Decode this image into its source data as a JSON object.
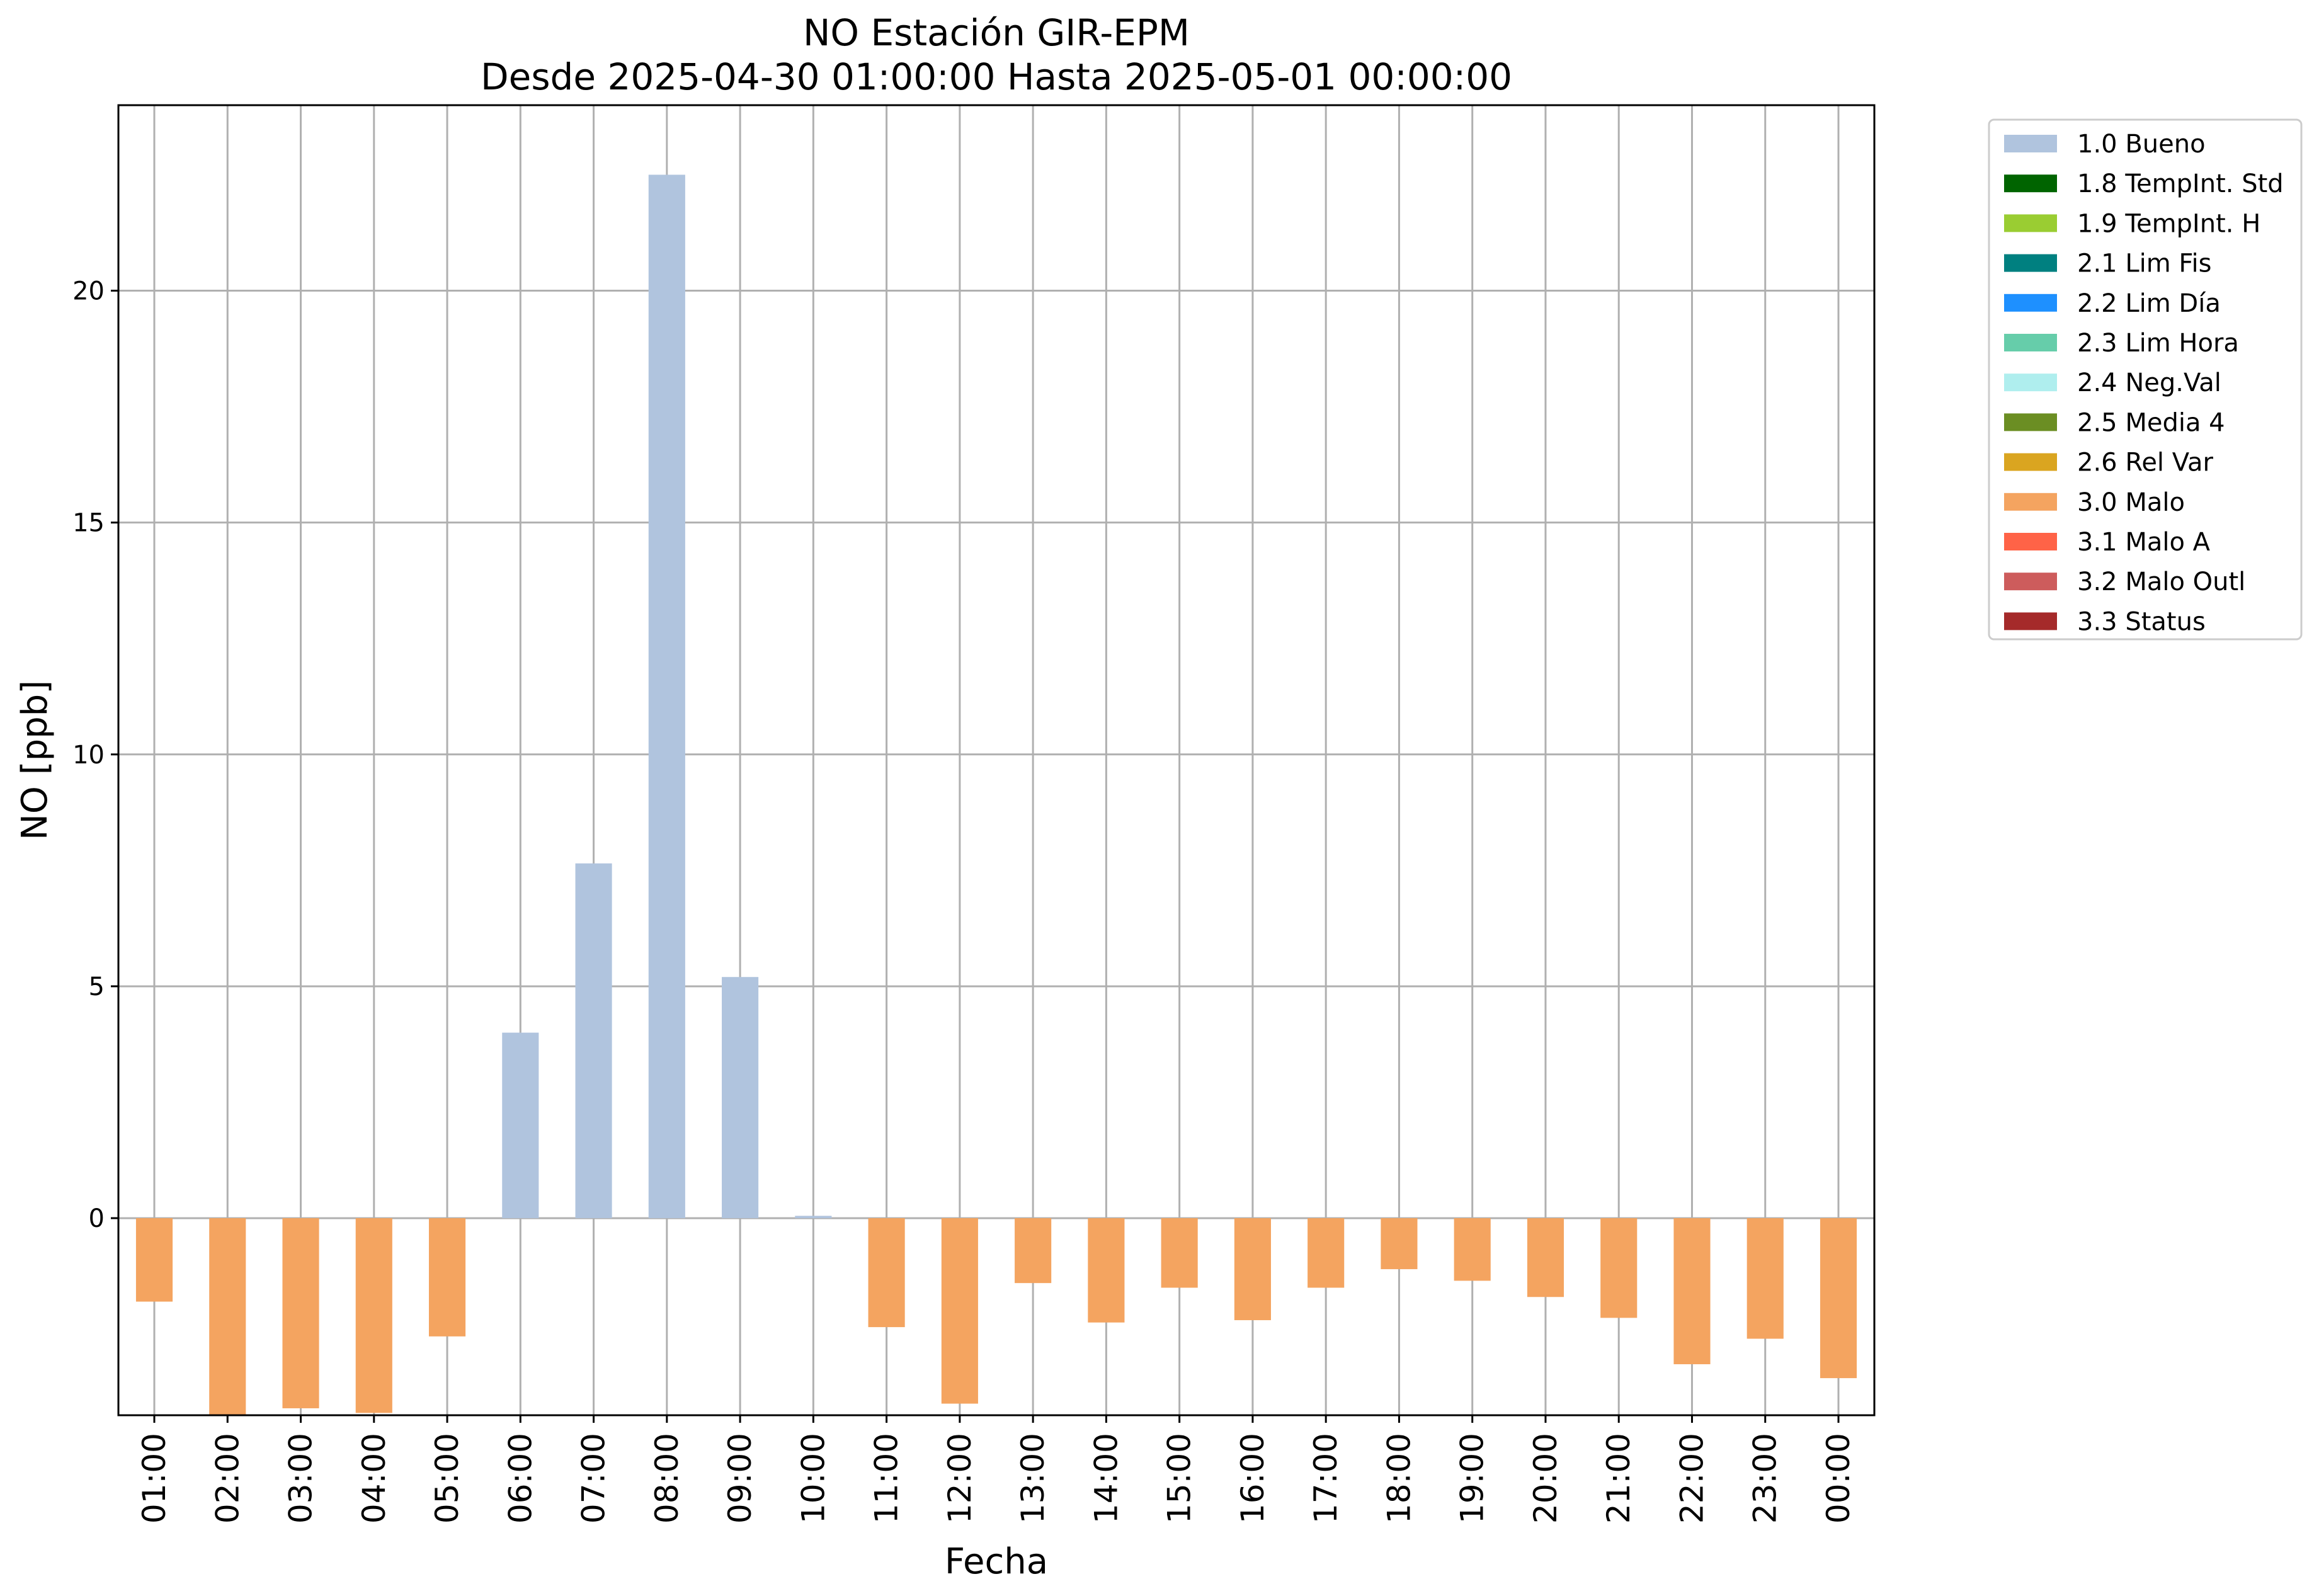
{
  "chart_data": {
    "type": "bar",
    "title": "NO Estación GIR-EPM",
    "subtitle": "Desde 2025-04-30 01:00:00 Hasta 2025-05-01 00:00:00",
    "xlabel": "Fecha",
    "ylabel": "NO [ppb]",
    "ylim": [
      -4.25,
      24
    ],
    "yticks": [
      0,
      5,
      10,
      15,
      20
    ],
    "grid": true,
    "legend_position": "outside-top-right",
    "categories": [
      "01:00",
      "02:00",
      "03:00",
      "04:00",
      "05:00",
      "06:00",
      "07:00",
      "08:00",
      "09:00",
      "10:00",
      "11:00",
      "12:00",
      "13:00",
      "14:00",
      "15:00",
      "16:00",
      "17:00",
      "18:00",
      "19:00",
      "20:00",
      "21:00",
      "22:00",
      "23:00",
      "00:00"
    ],
    "values": [
      -1.8,
      -4.25,
      -4.1,
      -4.2,
      -2.55,
      4.0,
      7.65,
      22.5,
      5.2,
      0.05,
      -2.35,
      -4.0,
      -1.4,
      -2.25,
      -1.5,
      -2.2,
      -1.5,
      -1.1,
      -1.35,
      -1.7,
      -2.15,
      -3.15,
      -2.6,
      -3.45
    ],
    "flags": [
      "3.0 Malo",
      "3.0 Malo",
      "3.0 Malo",
      "3.0 Malo",
      "3.0 Malo",
      "1.0 Bueno",
      "1.0 Bueno",
      "1.0 Bueno",
      "1.0 Bueno",
      "1.0 Bueno",
      "3.0 Malo",
      "3.0 Malo",
      "3.0 Malo",
      "3.0 Malo",
      "3.0 Malo",
      "3.0 Malo",
      "3.0 Malo",
      "3.0 Malo",
      "3.0 Malo",
      "3.0 Malo",
      "3.0 Malo",
      "3.0 Malo",
      "3.0 Malo",
      "3.0 Malo"
    ],
    "legend": [
      {
        "label": "1.0 Bueno",
        "color": "#b0c4de"
      },
      {
        "label": "1.8 TempInt. Std",
        "color": "#006400"
      },
      {
        "label": "1.9 TempInt. H",
        "color": "#9acd32"
      },
      {
        "label": "2.1 Lim Fis",
        "color": "#008080"
      },
      {
        "label": "2.2 Lim Día",
        "color": "#1e90ff"
      },
      {
        "label": "2.3 Lim Hora",
        "color": "#66cdaa"
      },
      {
        "label": "2.4 Neg.Val",
        "color": "#afeeee"
      },
      {
        "label": "2.5 Media 4",
        "color": "#6b8e23"
      },
      {
        "label": "2.6 Rel Var",
        "color": "#daa520"
      },
      {
        "label": "3.0 Malo",
        "color": "#f4a460"
      },
      {
        "label": "3.1 Malo A",
        "color": "#ff6347"
      },
      {
        "label": "3.2 Malo Outl",
        "color": "#cd5c5c"
      },
      {
        "label": "3.3 Status",
        "color": "#a52a2a"
      }
    ]
  }
}
